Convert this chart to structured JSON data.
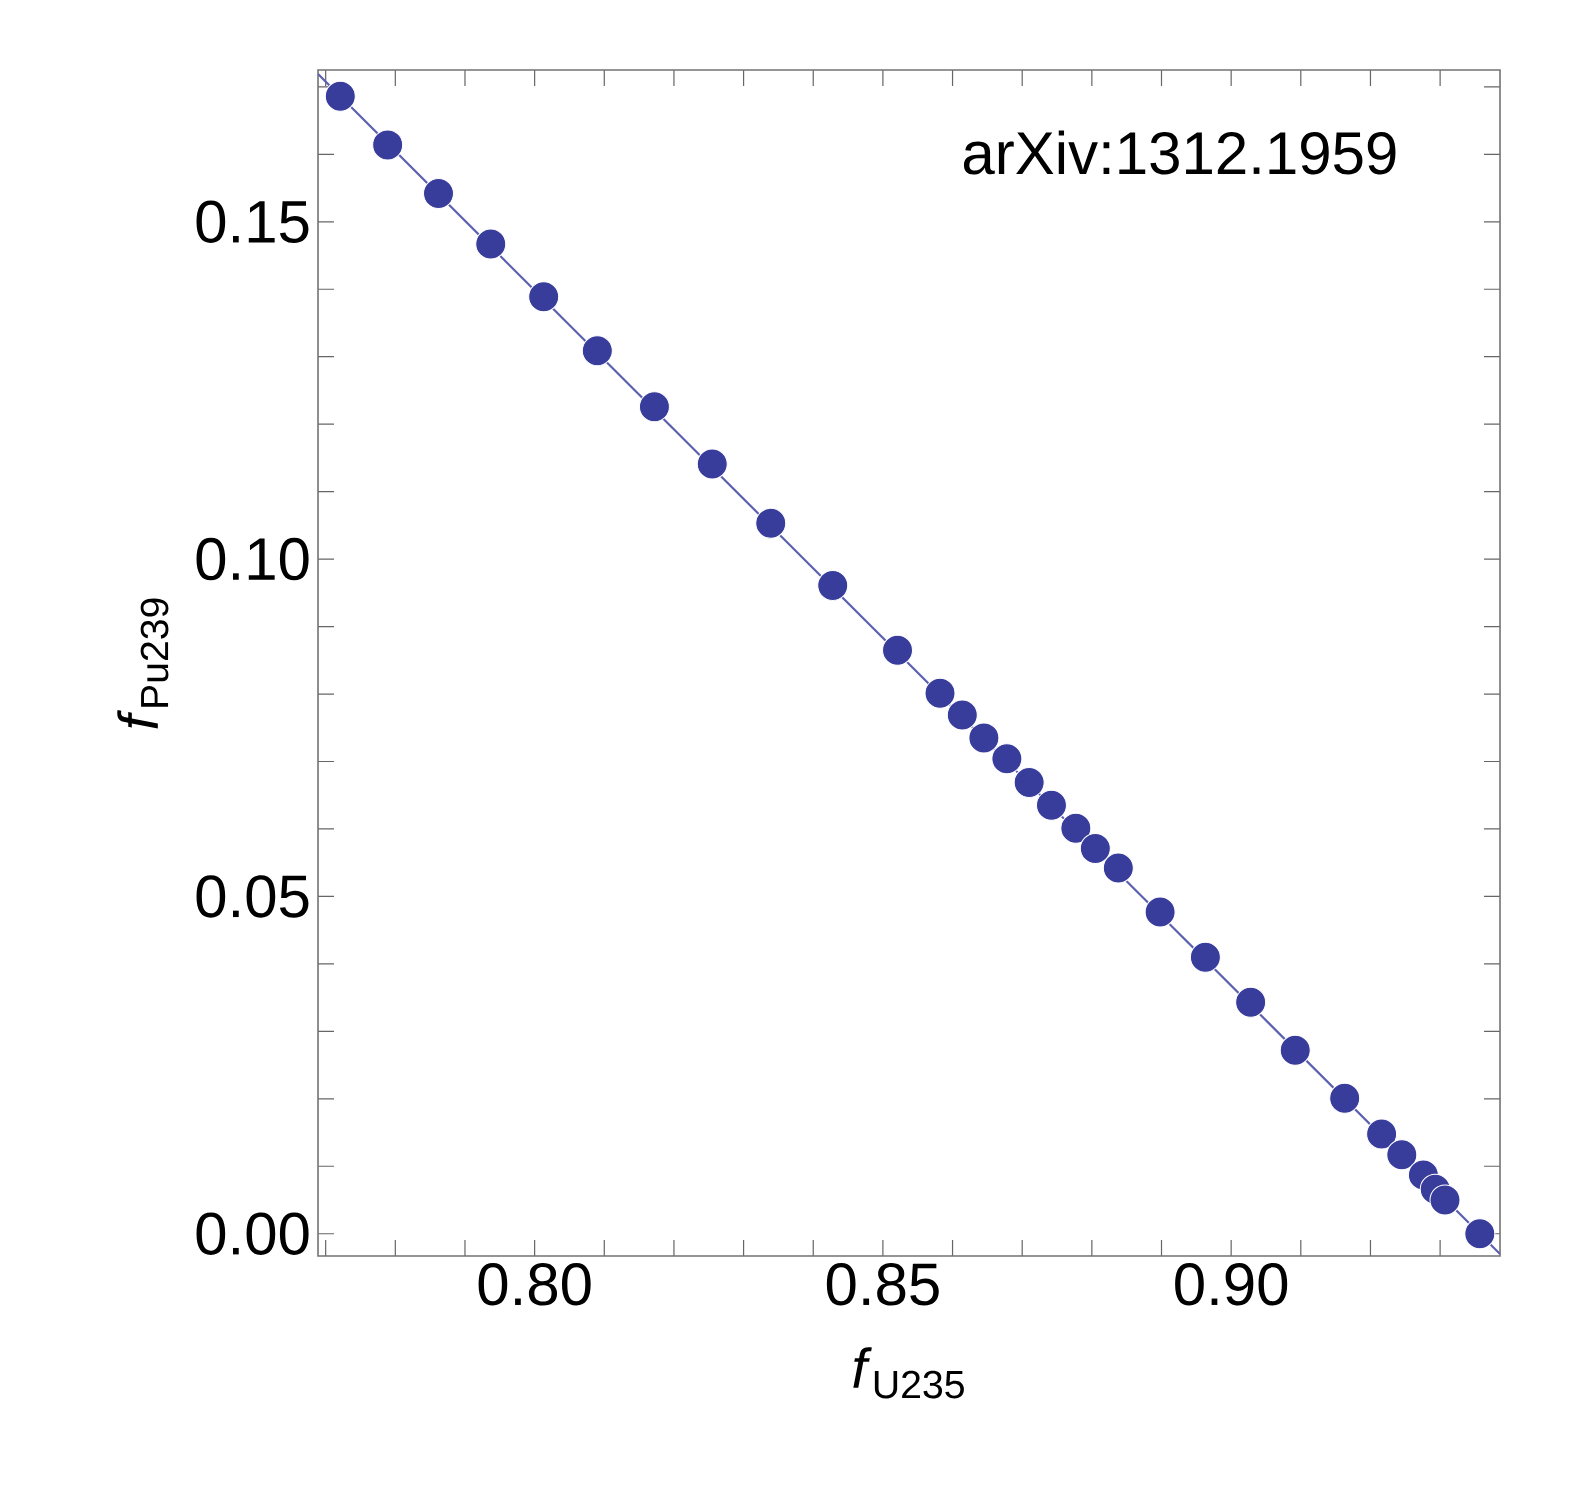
{
  "chart_data": {
    "type": "scatter",
    "xlabel": "*f*$_{U235}$",
    "ylabel": "*f*$_{Pu239}$",
    "annotations": [
      "arXiv:1312.1959"
    ],
    "xlim": [
      0.7689,
      0.9386
    ],
    "ylim": [
      -0.0033,
      0.1725
    ],
    "xticks": [
      {
        "value": 0.77,
        "label": null
      },
      {
        "value": 0.78,
        "label": null
      },
      {
        "value": 0.79,
        "label": null
      },
      {
        "value": 0.8,
        "label": "0.80"
      },
      {
        "value": 0.81,
        "label": null
      },
      {
        "value": 0.82,
        "label": null
      },
      {
        "value": 0.83,
        "label": null
      },
      {
        "value": 0.84,
        "label": null
      },
      {
        "value": 0.85,
        "label": "0.85"
      },
      {
        "value": 0.86,
        "label": null
      },
      {
        "value": 0.87,
        "label": null
      },
      {
        "value": 0.88,
        "label": null
      },
      {
        "value": 0.89,
        "label": null
      },
      {
        "value": 0.9,
        "label": "0.90"
      },
      {
        "value": 0.91,
        "label": null
      },
      {
        "value": 0.92,
        "label": null
      },
      {
        "value": 0.93,
        "label": null
      }
    ],
    "yticks": [
      {
        "value": 0.0,
        "label": "0.00"
      },
      {
        "value": 0.01,
        "label": null
      },
      {
        "value": 0.02,
        "label": null
      },
      {
        "value": 0.03,
        "label": null
      },
      {
        "value": 0.04,
        "label": null
      },
      {
        "value": 0.05,
        "label": "0.05"
      },
      {
        "value": 0.06,
        "label": null
      },
      {
        "value": 0.07,
        "label": null
      },
      {
        "value": 0.08,
        "label": null
      },
      {
        "value": 0.09,
        "label": null
      },
      {
        "value": 0.1,
        "label": "0.10"
      },
      {
        "value": 0.11,
        "label": null
      },
      {
        "value": 0.12,
        "label": null
      },
      {
        "value": 0.13,
        "label": null
      },
      {
        "value": 0.14,
        "label": null
      },
      {
        "value": 0.15,
        "label": "0.15"
      },
      {
        "value": 0.16,
        "label": null
      },
      {
        "value": 0.17,
        "label": null
      }
    ],
    "grid": false,
    "series": [
      {
        "type": "line",
        "marker": "none",
        "color": "#5c60b0",
        "x": [
          0.7689,
          0.9386
        ],
        "values": [
          0.1719,
          -0.003
        ]
      },
      {
        "marker": "circle",
        "color": "#383d9c",
        "x": [
          0.7721,
          0.7789,
          0.7862,
          0.7937,
          0.8013,
          0.809,
          0.8172,
          0.8255,
          0.8339,
          0.8428,
          0.8521,
          0.8582,
          0.8614,
          0.8645,
          0.8678,
          0.871,
          0.8742,
          0.8777,
          0.8805,
          0.8838,
          0.8898,
          0.8963,
          0.9028,
          0.9092,
          0.9163,
          0.9216,
          0.9245,
          0.9276,
          0.9293,
          0.9307,
          0.9357
        ],
        "values": [
          0.1686,
          0.1614,
          0.1542,
          0.1467,
          0.1389,
          0.1309,
          0.1226,
          0.1141,
          0.1053,
          0.0961,
          0.0865,
          0.0801,
          0.0769,
          0.0735,
          0.0704,
          0.0669,
          0.0635,
          0.0601,
          0.0571,
          0.0542,
          0.0477,
          0.041,
          0.0343,
          0.0272,
          0.0201,
          0.0148,
          0.0117,
          0.0087,
          0.0066,
          0.005,
          0.0
        ]
      }
    ]
  }
}
